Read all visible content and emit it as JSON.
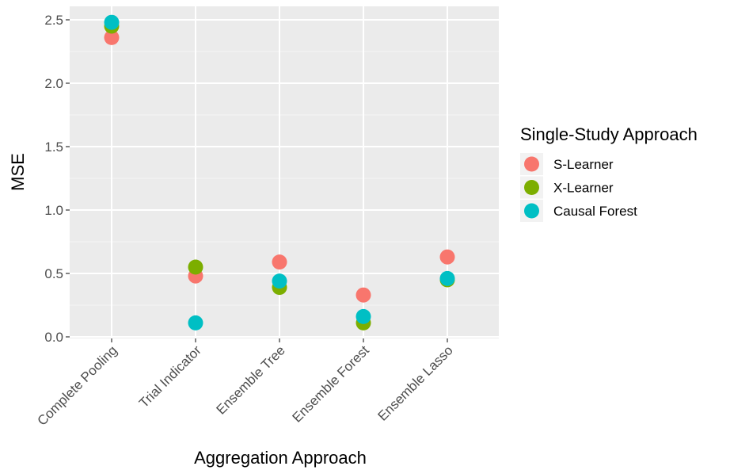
{
  "chart_data": {
    "type": "scatter",
    "title": "",
    "xlabel": "Aggregation Approach",
    "ylabel": "MSE",
    "ylim": [
      0,
      2.52
    ],
    "y_ticks": [
      "0.0",
      "0.5",
      "1.0",
      "1.5",
      "2.0",
      "2.5"
    ],
    "grid": true,
    "legend_position": "right",
    "legend_title": "Single-Study Approach",
    "categories": [
      "Complete Pooling",
      "Trial Indicator",
      "Ensemble Tree",
      "Ensemble Forest",
      "Ensemble Lasso"
    ],
    "series": [
      {
        "name": "S-Learner",
        "color": "#F8766D",
        "values": [
          2.36,
          0.48,
          0.59,
          0.33,
          0.63
        ]
      },
      {
        "name": "X-Learner",
        "color": "#7CAE00",
        "values": [
          2.45,
          0.55,
          0.39,
          0.11,
          0.45
        ]
      },
      {
        "name": "Causal Forest",
        "color": "#00BFC4",
        "values": [
          2.48,
          0.11,
          0.44,
          0.16,
          0.46
        ]
      }
    ]
  }
}
